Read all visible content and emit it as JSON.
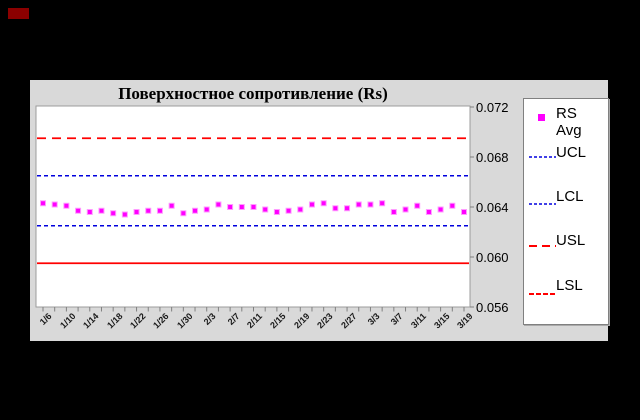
{
  "window": {
    "background_color": "#000000",
    "corner_artifact_color": "#8b0000"
  },
  "chart": {
    "background_color": "#d9d9d9",
    "plot_background_color": "#ffffff",
    "plot_border_color": "#9c9c9c",
    "tick_color": "#808080"
  },
  "legend": {
    "items": [
      {
        "label": "RS Avg",
        "sample": "square-marker",
        "color": "#ff00ff"
      },
      {
        "label": "UCL",
        "sample": "fine-dash-line",
        "color": "#0000dd"
      },
      {
        "label": "LCL",
        "sample": "fine-dash-line",
        "color": "#0000dd"
      },
      {
        "label": "USL",
        "sample": "long-dash-line",
        "color": "#ff0000"
      },
      {
        "label": "LSL",
        "sample": "med-dash-line",
        "color": "#ff0000"
      }
    ]
  },
  "chart_data": {
    "type": "scatter",
    "title": "Поверхностное сопротивление (Rs)",
    "x": [
      "1/6",
      "1/8",
      "1/10",
      "1/12",
      "1/14",
      "1/16",
      "1/18",
      "1/20",
      "1/22",
      "1/24",
      "1/26",
      "1/28",
      "1/30",
      "2/1",
      "2/3",
      "2/5",
      "2/7",
      "2/9",
      "2/11",
      "2/13",
      "2/15",
      "2/17",
      "2/19",
      "2/21",
      "2/23",
      "2/25",
      "2/27",
      "3/1",
      "3/3",
      "3/5",
      "3/7",
      "3/9",
      "3/11",
      "3/13",
      "3/15",
      "3/17",
      "3/19"
    ],
    "series": [
      {
        "name": "RS Avg",
        "marker": "square",
        "color": "#ff00ff",
        "values": [
          0.0643,
          0.0642,
          0.0641,
          0.0637,
          0.0636,
          0.0637,
          0.0635,
          0.0634,
          0.0636,
          0.0637,
          0.0637,
          0.0641,
          0.0635,
          0.0637,
          0.0638,
          0.0642,
          0.064,
          0.064,
          0.064,
          0.0638,
          0.0636,
          0.0637,
          0.0638,
          0.0642,
          0.0643,
          0.0639,
          0.0639,
          0.0642,
          0.0642,
          0.0643,
          0.0636,
          0.0638,
          0.0641,
          0.0636,
          0.0638,
          0.0641,
          0.0636
        ]
      }
    ],
    "limit_lines": [
      {
        "name": "USL",
        "value": 0.0695,
        "style": "dashed-long",
        "color": "#ff0000"
      },
      {
        "name": "UCL",
        "value": 0.0665,
        "style": "dashed-fine",
        "color": "#0000dd"
      },
      {
        "name": "LCL",
        "value": 0.0625,
        "style": "dashed-fine",
        "color": "#0000dd"
      },
      {
        "name": "LSL",
        "value": 0.0595,
        "style": "solid",
        "color": "#ff0000"
      }
    ],
    "ylim": [
      0.056,
      0.072
    ],
    "y_tick_labels": [
      "0.072",
      "0.068",
      "0.064",
      "0.060",
      "0.056"
    ],
    "x_tick_labels": [
      "1/6",
      "1/10",
      "1/14",
      "1/18",
      "1/22",
      "1/26",
      "1/30",
      "2/3",
      "2/7",
      "2/11",
      "2/15",
      "2/19",
      "2/23",
      "2/27",
      "3/3",
      "3/7",
      "3/11",
      "3/15",
      "3/19"
    ],
    "x_minor_ticks_every_point": true,
    "grid": false,
    "legend_position": "right",
    "y_axis_side": "right"
  }
}
